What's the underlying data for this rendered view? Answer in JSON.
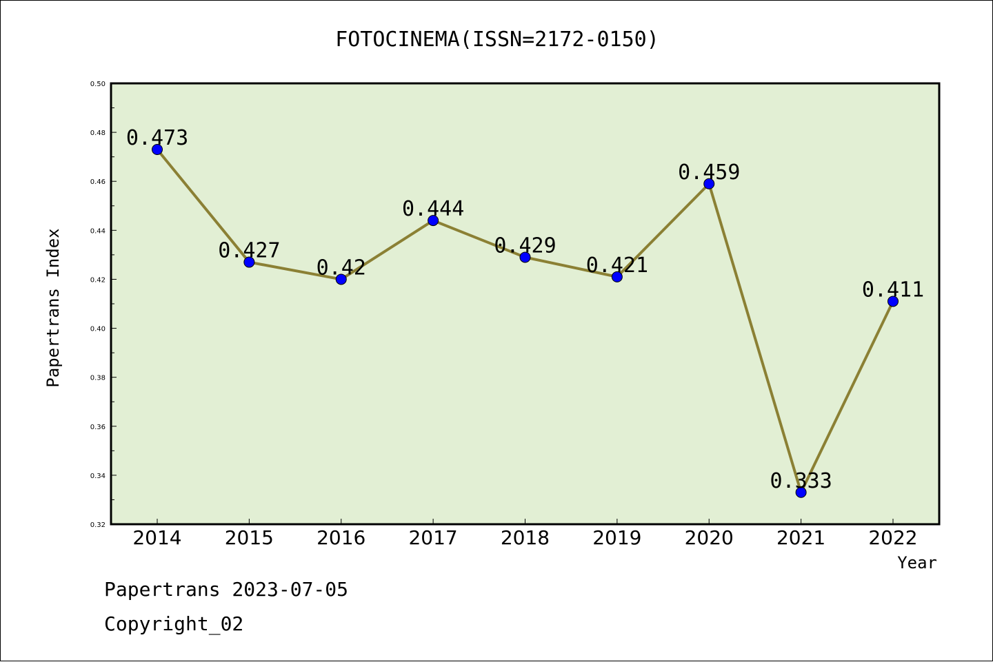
{
  "chart_data": {
    "type": "line",
    "title": "FOTOCINEMA(ISSN=2172-0150)",
    "xlabel": "Year",
    "ylabel": "Papertrans Index",
    "categories": [
      "2014",
      "2015",
      "2016",
      "2017",
      "2018",
      "2019",
      "2020",
      "2021",
      "2022"
    ],
    "values": [
      0.473,
      0.427,
      0.42,
      0.444,
      0.429,
      0.421,
      0.459,
      0.333,
      0.411
    ],
    "value_labels": [
      "0.473",
      "0.427",
      "0.42",
      "0.444",
      "0.429",
      "0.421",
      "0.459",
      "0.333",
      "0.411"
    ],
    "ylim": [
      0.32,
      0.5
    ],
    "yticks": [
      "0.32",
      "0.34",
      "0.36",
      "0.38",
      "0.40",
      "0.42",
      "0.44",
      "0.46",
      "0.48",
      "0.50"
    ],
    "grid": false,
    "legend": "none",
    "colors": {
      "plot_background": "#e2efd4",
      "line": "#8b8034",
      "marker": "#0000ff"
    }
  },
  "footer": {
    "date_line": "Papertrans 2023-07-05",
    "copyright_line": "Copyright_02"
  }
}
